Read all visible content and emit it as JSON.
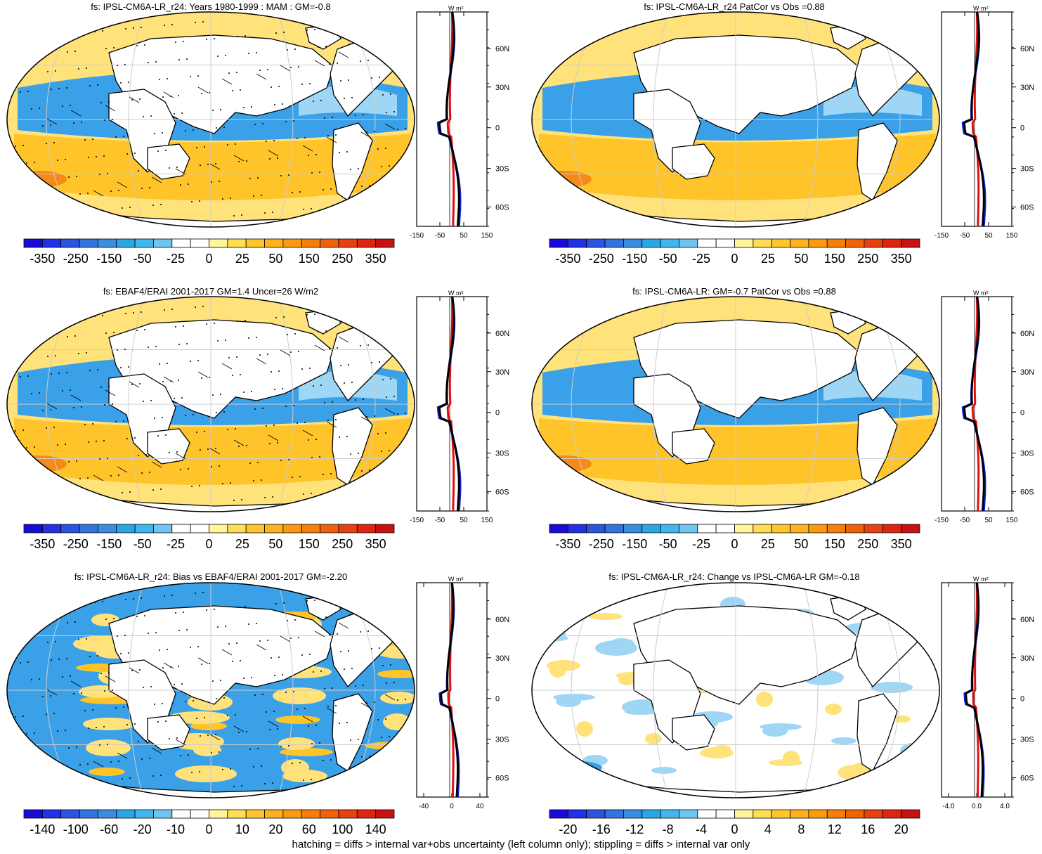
{
  "panels": [
    {
      "title": "fs: IPSL-CM6A-LR_r24: Years 1980-1999 : MAM : GM=-0.8",
      "colorbar": "cb1",
      "hatch": true,
      "stipple": true,
      "profile_variant": "a"
    },
    {
      "title": "fs: IPSL-CM6A-LR_r24 PatCor vs Obs =0.88",
      "colorbar": "cb1",
      "hatch": false,
      "stipple": false,
      "profile_variant": "a"
    },
    {
      "title": "fs: EBAF4/ERAI 2001-2017 GM=1.4 Uncer=26 W/m2",
      "colorbar": "cb1",
      "hatch": true,
      "stipple": true,
      "profile_variant": "a"
    },
    {
      "title": "fs: IPSL-CM6A-LR: GM=-0.7 PatCor vs Obs =0.88",
      "colorbar": "cb1",
      "hatch": false,
      "stipple": false,
      "profile_variant": "a"
    },
    {
      "title": "fs: IPSL-CM6A-LR_r24: Bias vs EBAF4/ERAI 2001-2017 GM=-2.20",
      "colorbar": "cb2",
      "hatch": true,
      "stipple": true,
      "profile_variant": "b"
    },
    {
      "title": "fs: IPSL-CM6A-LR_r24: Change vs IPSL-CM6A-LR GM=-0.18",
      "colorbar": "cb3",
      "hatch": false,
      "stipple": false,
      "profile_variant": "c"
    }
  ],
  "colorbars": {
    "cb1": [
      "-350",
      "-250",
      "-150",
      "-50",
      "-25",
      "0",
      "25",
      "50",
      "150",
      "250",
      "350"
    ],
    "cb2": [
      "-140",
      "-100",
      "-60",
      "-20",
      "-10",
      "0",
      "10",
      "20",
      "60",
      "100",
      "140"
    ],
    "cb3": [
      "-20",
      "-16",
      "-12",
      "-8",
      "-4",
      "0",
      "4",
      "8",
      "12",
      "16",
      "20"
    ]
  },
  "colorbar_colors": [
    "#1a0ad8",
    "#2330e6",
    "#2b55e0",
    "#3273df",
    "#3a8de0",
    "#2aa6e6",
    "#40b6ee",
    "#6fc5f0",
    "#ffffff",
    "#ffffff",
    "#fff59a",
    "#ffdd55",
    "#ffc62a",
    "#ffb21b",
    "#fb9a10",
    "#f57f0a",
    "#f0620a",
    "#e84110",
    "#df2412",
    "#c71212"
  ],
  "profile_axis": {
    "unit": "W m²",
    "lat_labels": [
      "60N",
      "30N",
      "0",
      "30S",
      "60S"
    ],
    "x_ticks_a": [
      "-150",
      "-50",
      "50",
      "150"
    ],
    "x_ticks_b": [
      "-40",
      "0",
      "40"
    ],
    "x_ticks_c": [
      "-4.0",
      "0.0",
      "4.0"
    ]
  },
  "profile_series_colors": {
    "model": "#e01010",
    "obs": "#1020e0",
    "mean": "#000000"
  },
  "map_colors": {
    "land": "#ffffff",
    "ocean_neg": "#3aa0e8",
    "ocean_light": "#9fd6f5",
    "pos_light": "#ffe27a",
    "pos_mid": "#ffc42a",
    "pos_strong": "#f58a1a",
    "red": "#e83a20",
    "grid": "#cccccc"
  },
  "footer": "hatching = diffs > internal var+obs uncertainty (left column only); stippling = diffs > internal var only"
}
